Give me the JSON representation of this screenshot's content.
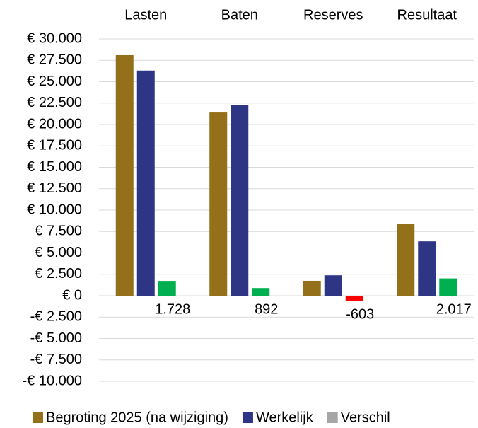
{
  "chart_data": {
    "type": "bar",
    "categories": [
      "Lasten",
      "Baten",
      "Reserves",
      "Resultaat"
    ],
    "series": [
      {
        "name": "Begroting 2025 (na wijziging)",
        "color": "#94701a",
        "values": [
          28100,
          21400,
          1740,
          8350
        ]
      },
      {
        "name": "Werkelijk",
        "color": "#2e3585",
        "values": [
          26300,
          22300,
          2380,
          6350
        ]
      },
      {
        "name": "Verschil",
        "color": "#a6a6a6",
        "values": [
          1728,
          892,
          -603,
          2017
        ],
        "value_labels": [
          "1.728",
          "892",
          "-603",
          "2.017"
        ],
        "point_colors": [
          "#00b050",
          "#00b050",
          "#ff0000",
          "#00b050"
        ]
      }
    ],
    "ylim": [
      -10000,
      30000
    ],
    "yticks": [
      {
        "value": -10000,
        "label": "-€ 10.000"
      },
      {
        "value": -7500,
        "label": "-€ 7.500"
      },
      {
        "value": -5000,
        "label": "-€ 5.000"
      },
      {
        "value": -2500,
        "label": "-€ 2.500"
      },
      {
        "value": 0,
        "label": "€ 0"
      },
      {
        "value": 2500,
        "label": "€ 2.500"
      },
      {
        "value": 5000,
        "label": "€ 5.000"
      },
      {
        "value": 7500,
        "label": "€ 7.500"
      },
      {
        "value": 10000,
        "label": "€ 10.000"
      },
      {
        "value": 12500,
        "label": "€ 12.500"
      },
      {
        "value": 15000,
        "label": "€ 15.000"
      },
      {
        "value": 17500,
        "label": "€ 17.500"
      },
      {
        "value": 20000,
        "label": "€ 20.000"
      },
      {
        "value": 22500,
        "label": "€ 22.500"
      },
      {
        "value": 25000,
        "label": "€ 25.000"
      },
      {
        "value": 27500,
        "label": "€ 27.500"
      },
      {
        "value": 30000,
        "label": "€ 30.000"
      }
    ],
    "grid": true,
    "legend": "bottom"
  }
}
